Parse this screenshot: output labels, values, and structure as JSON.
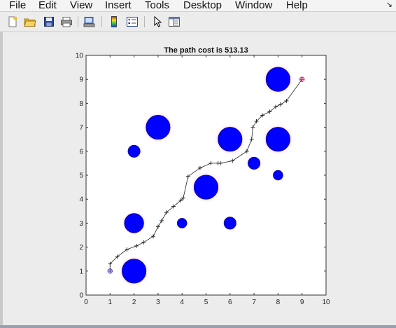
{
  "window": {
    "menu": [
      "File",
      "Edit",
      "View",
      "Insert",
      "Tools",
      "Desktop",
      "Window",
      "Help"
    ],
    "close_glyph": "↘"
  },
  "toolbar": {
    "buttons": [
      "new-figure-icon",
      "open-file-icon",
      "save-icon",
      "print-icon",
      "print-preview-icon",
      "colorbar-icon",
      "legend-icon",
      "select-arrow-icon",
      "property-editor-icon"
    ]
  },
  "colors": {
    "obstacle": "#0000ff",
    "path": "#222222",
    "endpoint": "#e0006a",
    "start": "#3333aa"
  },
  "chart_data": {
    "type": "scatter",
    "title": "The path cost is 513.13",
    "xlim": [
      0,
      10
    ],
    "ylim": [
      0,
      10
    ],
    "xticks": [
      "0",
      "1",
      "2",
      "3",
      "4",
      "5",
      "6",
      "7",
      "8",
      "9",
      "10"
    ],
    "yticks": [
      "0",
      "1",
      "2",
      "3",
      "4",
      "5",
      "6",
      "7",
      "8",
      "9",
      "10"
    ],
    "grid": false,
    "obstacles": [
      {
        "x": 2,
        "y": 1,
        "r": 0.5
      },
      {
        "x": 2,
        "y": 3,
        "r": 0.4
      },
      {
        "x": 2,
        "y": 6,
        "r": 0.25
      },
      {
        "x": 3,
        "y": 7,
        "r": 0.5
      },
      {
        "x": 4,
        "y": 3,
        "r": 0.2
      },
      {
        "x": 5,
        "y": 4.5,
        "r": 0.5
      },
      {
        "x": 6,
        "y": 3,
        "r": 0.25
      },
      {
        "x": 6,
        "y": 6.5,
        "r": 0.5
      },
      {
        "x": 7,
        "y": 5.5,
        "r": 0.25
      },
      {
        "x": 8,
        "y": 5,
        "r": 0.2
      },
      {
        "x": 8,
        "y": 6.5,
        "r": 0.5
      },
      {
        "x": 8,
        "y": 9,
        "r": 0.5
      }
    ],
    "path": [
      [
        1,
        1
      ],
      [
        1,
        1.3
      ],
      [
        1.3,
        1.6
      ],
      [
        1.7,
        1.9
      ],
      [
        2.1,
        2.05
      ],
      [
        2.4,
        2.2
      ],
      [
        2.8,
        2.45
      ],
      [
        3,
        2.85
      ],
      [
        3.15,
        3.1
      ],
      [
        3.35,
        3.45
      ],
      [
        3.65,
        3.7
      ],
      [
        3.95,
        3.95
      ],
      [
        4.05,
        4.05
      ],
      [
        4.25,
        4.95
      ],
      [
        4.75,
        5.3
      ],
      [
        5.2,
        5.5
      ],
      [
        5.5,
        5.5
      ],
      [
        5.6,
        5.5
      ],
      [
        6.1,
        5.6
      ],
      [
        6.7,
        6
      ],
      [
        6.9,
        6.5
      ],
      [
        6.95,
        7
      ],
      [
        7.1,
        7.25
      ],
      [
        7.35,
        7.5
      ],
      [
        7.65,
        7.65
      ],
      [
        7.9,
        7.85
      ],
      [
        8.1,
        7.95
      ],
      [
        8.35,
        8.1
      ],
      [
        9,
        9
      ]
    ],
    "start": [
      1,
      1
    ],
    "goal": [
      9,
      9
    ]
  }
}
